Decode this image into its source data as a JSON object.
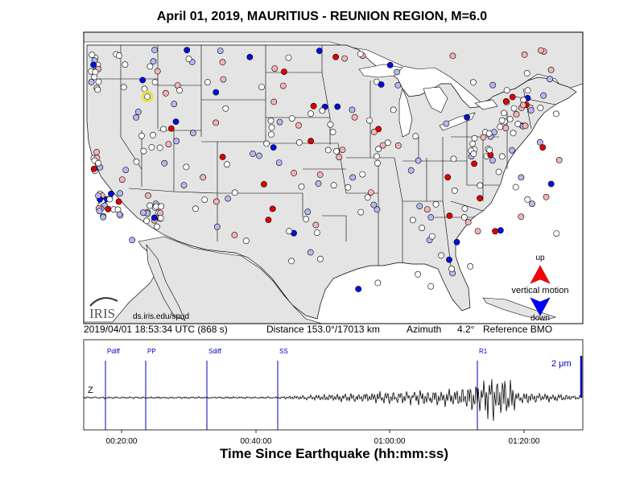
{
  "title": "April 01, 2019, MAURITIUS - REUNION REGION, M=6.0",
  "logo": {
    "text": "IRIS",
    "url": "ds.iris.edu/spud"
  },
  "legend": {
    "up": "up",
    "label": "vertical motion",
    "down": "down",
    "up_color": "#ff0000",
    "down_color": "#0000ff"
  },
  "info": {
    "time": "2019/04/01 18:53:34 UTC (868 s)",
    "distance": "Distance 153.0°/17013 km",
    "azimuth": "Azimuth",
    "azimuth_value": "4.2°",
    "reference": "Reference BMO"
  },
  "seismogram": {
    "component": "Z",
    "scale": "2 μm",
    "phases": [
      "Pdiff",
      "PP",
      "Sdiff",
      "SS",
      "R1"
    ],
    "ticks": [
      "00:20:00",
      "00:40:00",
      "01:00:00",
      "01:20:00"
    ],
    "xlabel": "Time Since Earthquake (hh:mm:ss)"
  },
  "colors": {
    "land": "#e4e4e4",
    "water": "#ffffff",
    "phase_line": "#0000c0",
    "up_strong": "#e00000",
    "up_light": "#f4b4b4",
    "down_strong": "#0010e0",
    "down_light": "#b4b8f4",
    "neutral": "#ffffff"
  }
}
